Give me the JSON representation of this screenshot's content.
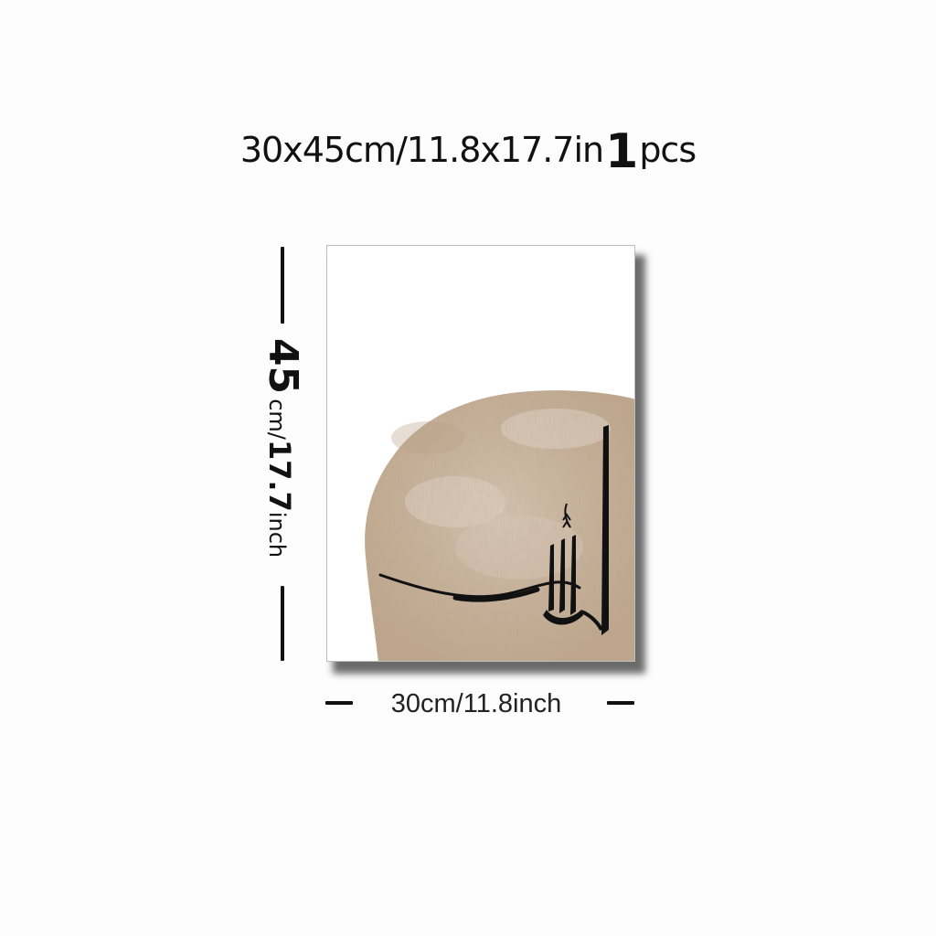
{
  "title": {
    "size_text": "30x45cm/11.8x17.7in",
    "qty_number": "1",
    "qty_unit": "pcs"
  },
  "dimensions": {
    "height_number": "45",
    "height_unit_cm": "cm/",
    "height_inches": "17.7",
    "height_unit_in": "inch",
    "width_label": "30cm/11.8inch"
  },
  "artwork": {
    "calligraphy_text": "الله",
    "colors": {
      "paper": "#ffffff",
      "circle": "#c9b29a",
      "circle_light": "#e0d3c4",
      "ink": "#111111"
    }
  }
}
